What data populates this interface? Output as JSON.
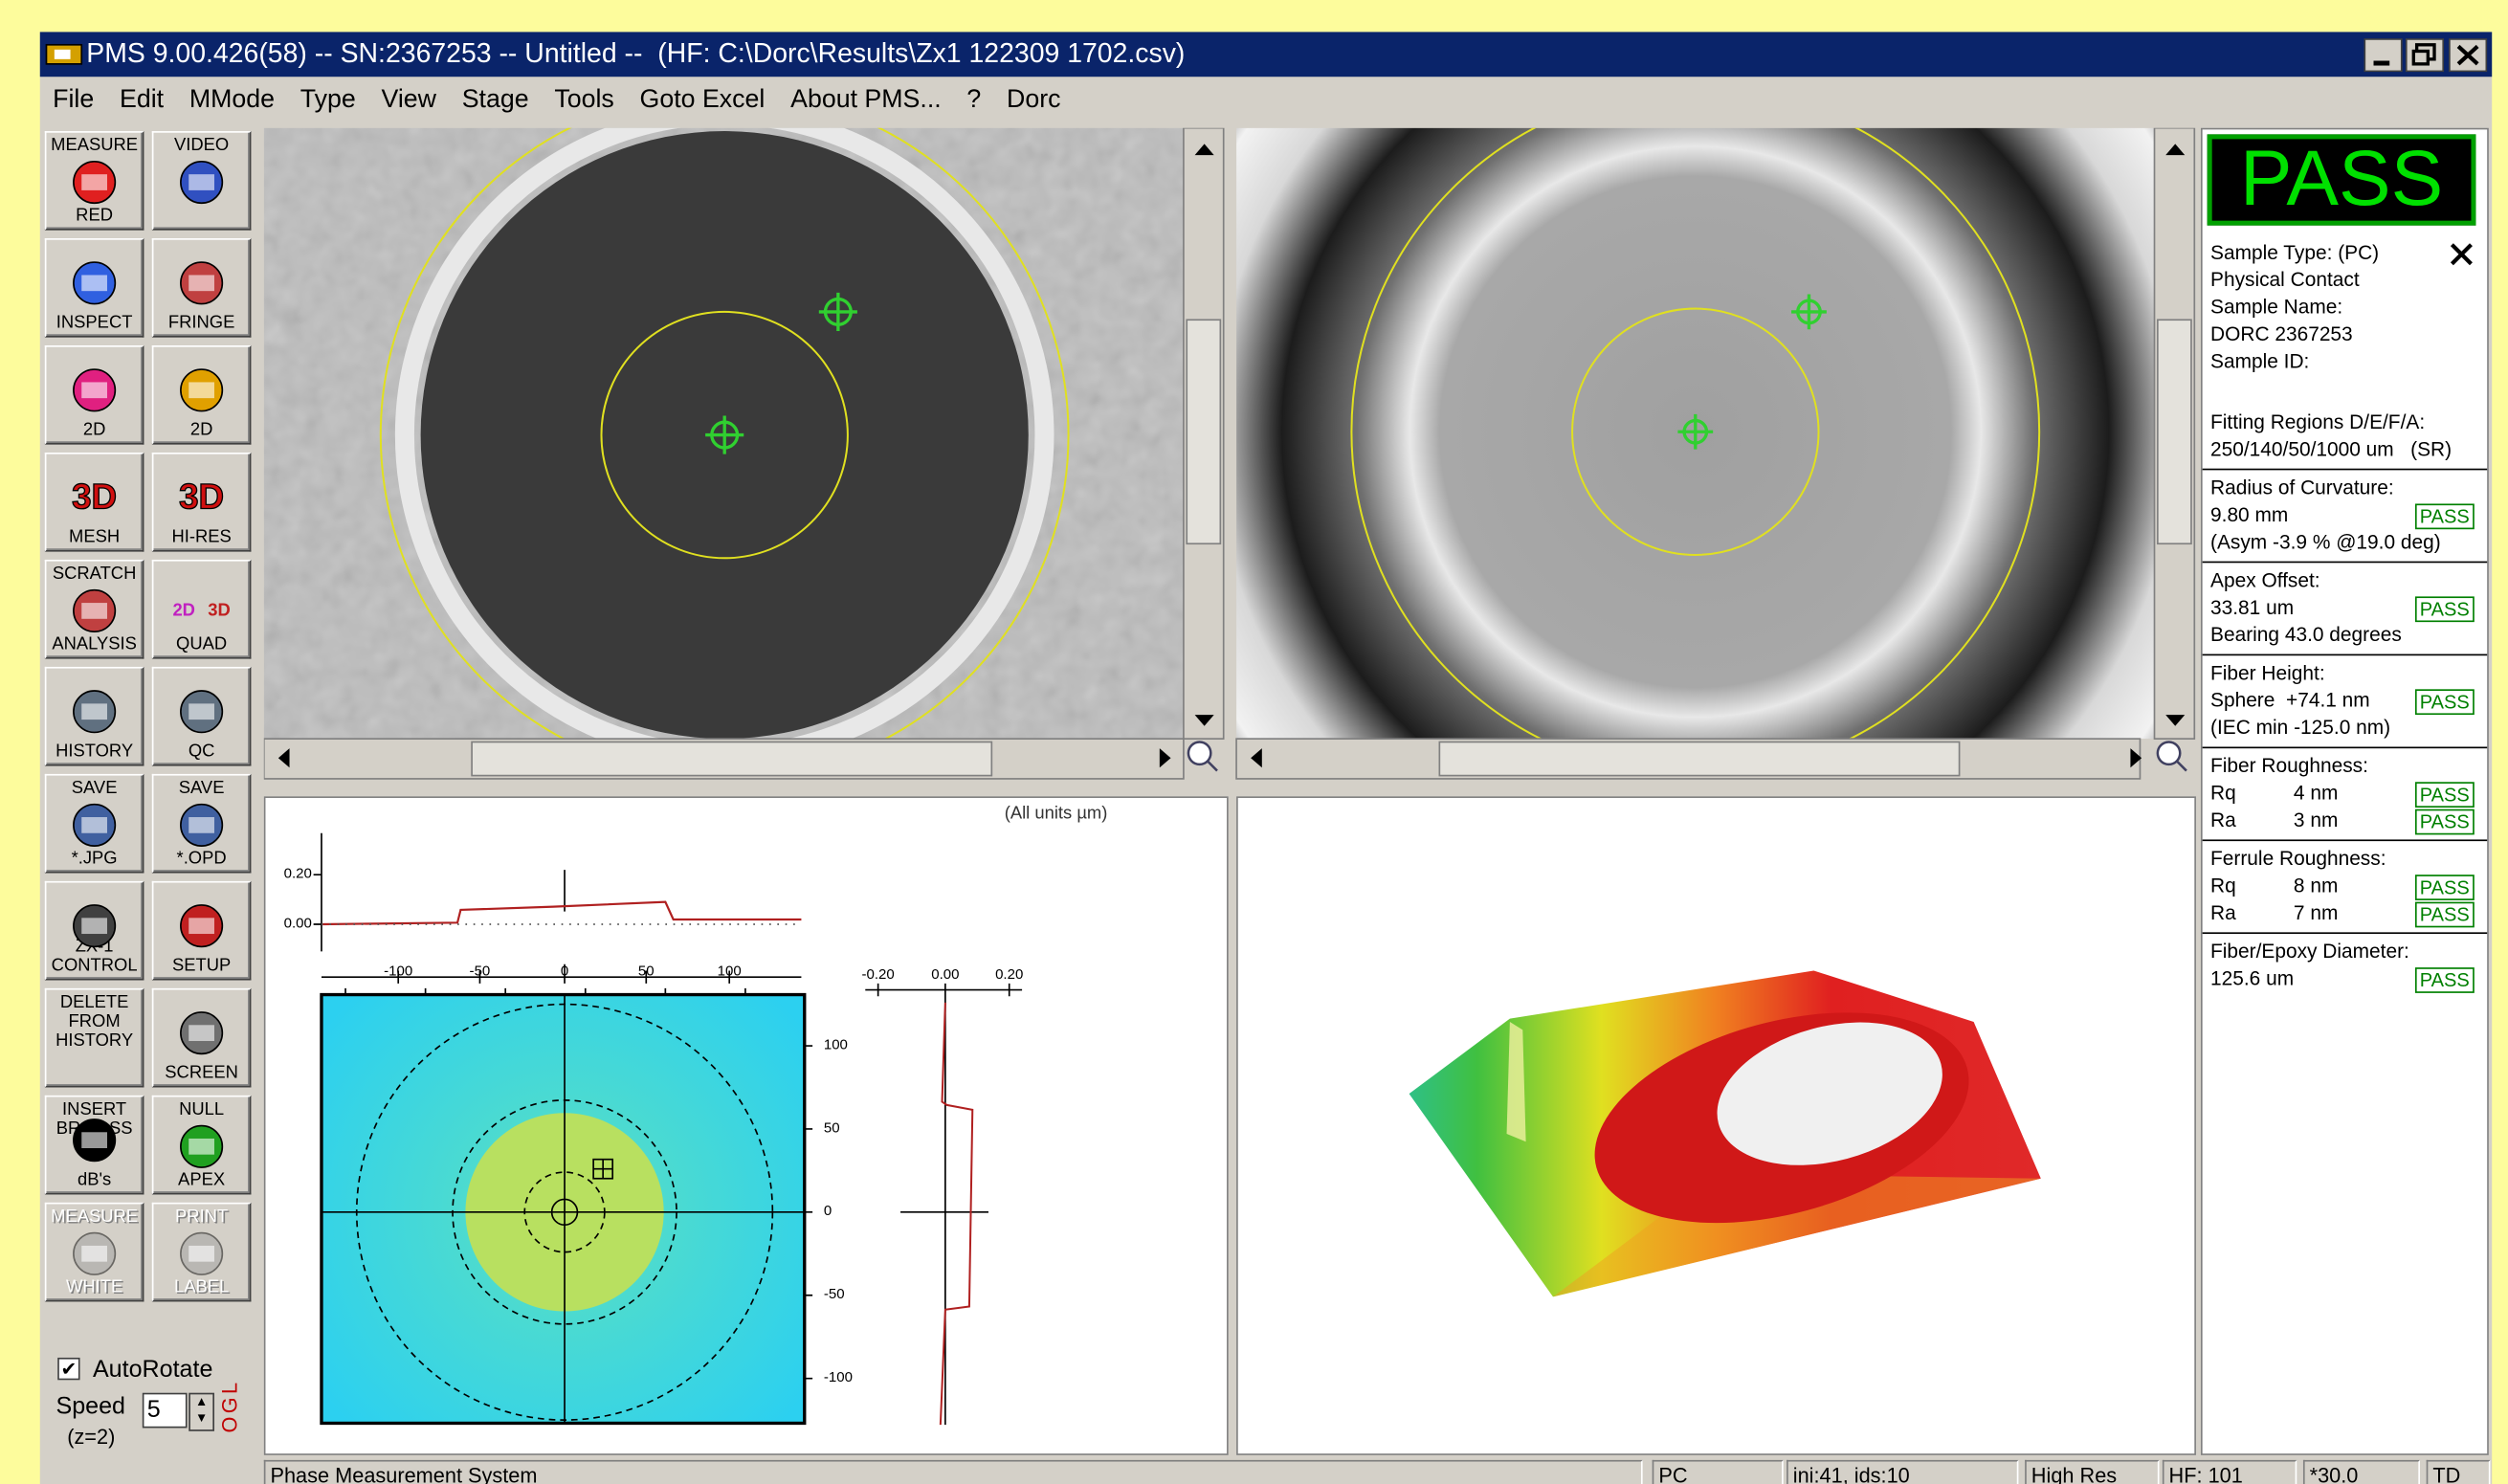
{
  "window": {
    "title": "PMS 9.00.426(58) -- SN:2367253 -- Untitled --  (HF: C:\\Dorc\\Results\\Zx1 122309 1702.csv)"
  },
  "menu": [
    "File",
    "Edit",
    "MMode",
    "Type",
    "View",
    "Stage",
    "Tools",
    "Goto Excel",
    "About PMS...",
    "?",
    "Dorc"
  ],
  "toolbar": [
    {
      "top": "MEASURE",
      "bottom": "RED"
    },
    {
      "top": "VIDEO"
    },
    {
      "bottom": "INSPECT"
    },
    {
      "bottom": "FRINGE"
    },
    {
      "bottom": "2D"
    },
    {
      "bottom": "2D"
    },
    {
      "bottom": "MESH",
      "icon_text": [
        "3D"
      ]
    },
    {
      "bottom": "HI-RES",
      "icon_text": [
        "3D"
      ]
    },
    {
      "top": "SCRATCH",
      "bottom": "ANALYSIS"
    },
    {
      "bottom": "QUAD",
      "icon_text": [
        "2D",
        "3D"
      ]
    },
    {
      "bottom": "HISTORY"
    },
    {
      "bottom": "QC"
    },
    {
      "top": "SAVE",
      "bottom": "*.JPG"
    },
    {
      "top": "SAVE",
      "bottom": "*.OPD"
    },
    {
      "bottom": "ZX-1\nCONTROL"
    },
    {
      "bottom": "SETUP"
    },
    {
      "top": "DELETE\nFROM\nHISTORY"
    },
    {
      "bottom": "SCREEN"
    },
    {
      "top": "INSERT\nBR/LOSS",
      "bottom": "dB's"
    },
    {
      "top": "NULL",
      "bottom": "APEX"
    },
    {
      "top": "MEASURE",
      "bottom": "WHITE"
    },
    {
      "top": "PRINT",
      "bottom": "LABEL"
    }
  ],
  "controls": {
    "autorotate": "AutoRotate",
    "speed": "Speed",
    "speed_value": "5",
    "z": "(z=2)",
    "ogl": "OGL"
  },
  "plot": {
    "units": "(All units µm)",
    "profile_y_ticks": [
      "0.20",
      "0.00"
    ],
    "x_ticks": [
      "-100",
      "-50",
      "0",
      "50",
      "100"
    ],
    "v_ticks": [
      "-0.20",
      "0.00",
      "0.20"
    ],
    "y_ticks": [
      "100",
      "50",
      "0",
      "-50",
      "-100"
    ]
  },
  "results": {
    "status": "PASS",
    "sections": [
      [
        {
          "text": "Sample Type: (PC)"
        },
        {
          "text": "Physical Contact"
        },
        {
          "text": "Sample Name:"
        },
        {
          "text": "DORC 2367253"
        },
        {
          "text": "Sample ID:"
        },
        {
          "text": "Fitting Regions D/E/F/A:"
        },
        {
          "text": "250/140/50/1000 um   (SR)"
        }
      ],
      [
        {
          "text": "Radius of Curvature:"
        },
        {
          "text": "9.80 mm",
          "badge": "PASS"
        },
        {
          "text": "(Asym -3.9 % @19.0 deg)"
        }
      ],
      [
        {
          "text": "Apex Offset:"
        },
        {
          "text": "33.81 um",
          "badge": "PASS"
        },
        {
          "text": "Bearing 43.0 degrees"
        }
      ],
      [
        {
          "text": "Fiber Height:"
        },
        {
          "text": "Sphere  +74.1 nm",
          "badge": "PASS"
        },
        {
          "text": "(IEC min -125.0 nm)"
        }
      ],
      [
        {
          "text": "Fiber Roughness:"
        },
        {
          "label": "Rq",
          "text": "4 nm",
          "badge": "PASS"
        },
        {
          "label": "Ra",
          "text": "3 nm",
          "badge": "PASS"
        }
      ],
      [
        {
          "text": "Ferrule Roughness:"
        },
        {
          "label": "Rq",
          "text": "8 nm",
          "badge": "PASS"
        },
        {
          "label": "Ra",
          "text": "7 nm",
          "badge": "PASS"
        }
      ],
      [
        {
          "text": "Fiber/Epoxy Diameter:"
        },
        {
          "text": "125.6 um",
          "badge": "PASS"
        }
      ]
    ]
  },
  "status_bar": [
    "Phase Measurement System",
    "PC",
    "ini:41, ids:10",
    "High Res",
    "HF: 101",
    "*30.0",
    "TD"
  ]
}
